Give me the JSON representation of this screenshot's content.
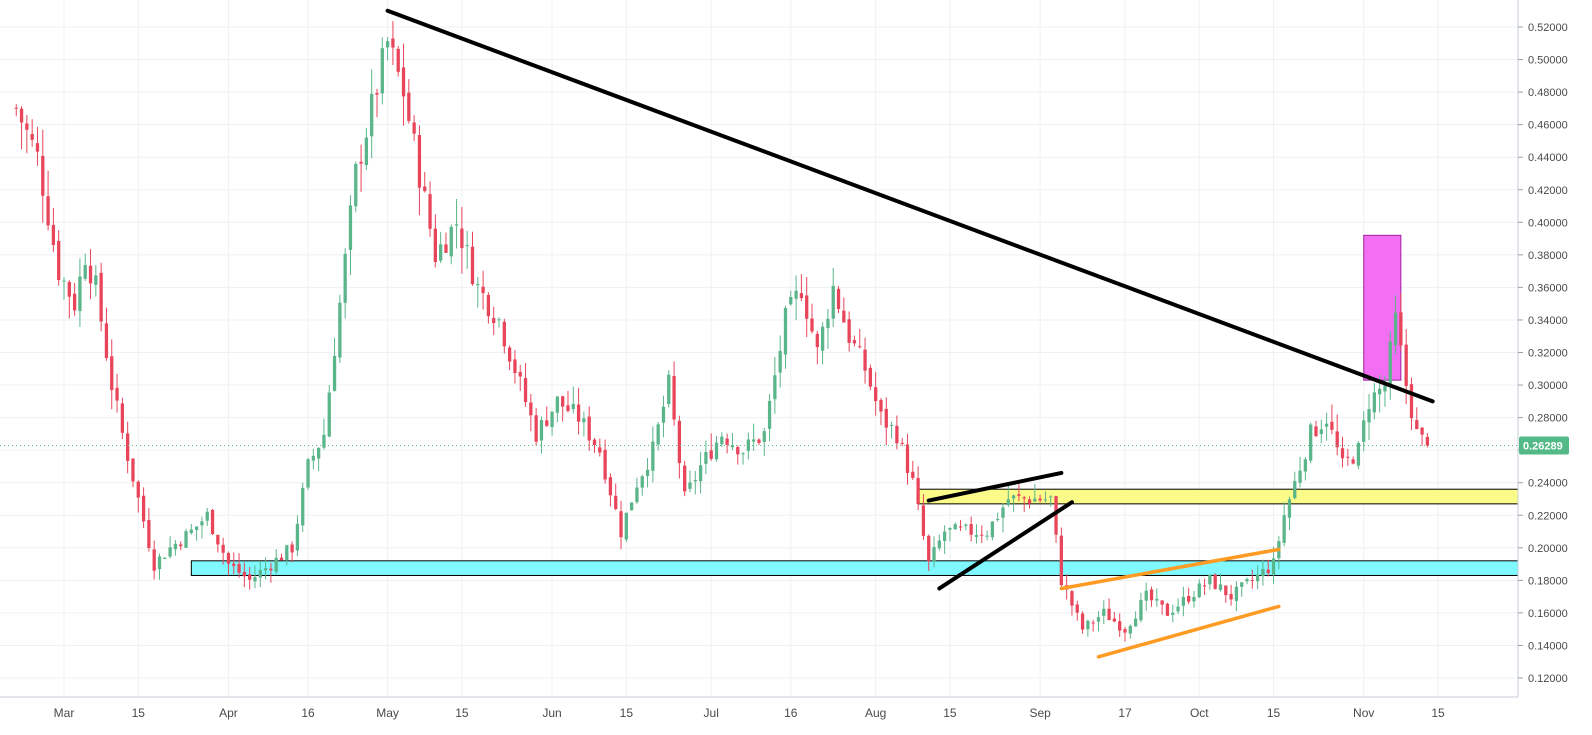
{
  "colors": {
    "background": "#ffffff",
    "grid": "#eef1f5",
    "up": "#5bb58a",
    "down": "#e8455b",
    "support_zone": "#7ff8ff",
    "resistance_zone": "#fbfb8a",
    "highlight_box": "#f26ef2",
    "trend_line": "#000000",
    "channel_line": "#ff9a22",
    "last_price": "#53b987"
  },
  "price_axis": {
    "ticks": [
      "0.52000",
      "0.50000",
      "0.48000",
      "0.46000",
      "0.44000",
      "0.42000",
      "0.40000",
      "0.38000",
      "0.36000",
      "0.34000",
      "0.32000",
      "0.30000",
      "0.28000",
      "0.26000",
      "0.24000",
      "0.22000",
      "0.20000",
      "0.18000",
      "0.16000",
      "0.14000",
      "0.12000"
    ],
    "last_price_label": "0.26289"
  },
  "time_axis": {
    "labels": [
      "Mar",
      "15",
      "Apr",
      "16",
      "May",
      "15",
      "Jun",
      "15",
      "Jul",
      "16",
      "Aug",
      "15",
      "Sep",
      "17",
      "Oct",
      "15",
      "Nov",
      "15"
    ]
  },
  "chart_data": {
    "type": "candlestick",
    "ylim": [
      0.11,
      0.53
    ],
    "y_ticks": [
      0.52,
      0.5,
      0.48,
      0.46,
      0.44,
      0.42,
      0.4,
      0.38,
      0.36,
      0.34,
      0.32,
      0.3,
      0.28,
      0.26,
      0.24,
      0.22,
      0.2,
      0.18,
      0.16,
      0.14,
      0.12
    ],
    "x_tick_dates": [
      "Mar 1",
      "Mar 15",
      "Apr 1",
      "Apr 16",
      "May 1",
      "May 15",
      "Jun 1",
      "Jun 15",
      "Jul 1",
      "Jul 16",
      "Aug 1",
      "Aug 15",
      "Sep 1",
      "Sep 17",
      "Oct 1",
      "Oct 15",
      "Nov 1",
      "Nov 15"
    ],
    "last_price": 0.26289,
    "close_path": [
      [
        "Feb 20",
        0.47
      ],
      [
        "Feb 24",
        0.44
      ],
      [
        "Feb 28",
        0.37
      ],
      [
        "Mar 3",
        0.35
      ],
      [
        "Mar 5",
        0.38
      ],
      [
        "Mar 7",
        0.36
      ],
      [
        "Mar 10",
        0.3
      ],
      [
        "Mar 12",
        0.27
      ],
      [
        "Mar 15",
        0.23
      ],
      [
        "Mar 18",
        0.19
      ],
      [
        "Mar 21",
        0.2
      ],
      [
        "Mar 25",
        0.21
      ],
      [
        "Mar 28",
        0.22
      ],
      [
        "Apr 1",
        0.19
      ],
      [
        "Apr 5",
        0.18
      ],
      [
        "Apr 9",
        0.19
      ],
      [
        "Apr 13",
        0.2
      ],
      [
        "Apr 16",
        0.25
      ],
      [
        "Apr 19",
        0.27
      ],
      [
        "Apr 22",
        0.35
      ],
      [
        "Apr 25",
        0.43
      ],
      [
        "Apr 28",
        0.47
      ],
      [
        "May 1",
        0.51
      ],
      [
        "May 4",
        0.48
      ],
      [
        "May 7",
        0.43
      ],
      [
        "May 10",
        0.38
      ],
      [
        "May 14",
        0.4
      ],
      [
        "May 18",
        0.36
      ],
      [
        "May 22",
        0.34
      ],
      [
        "May 25",
        0.31
      ],
      [
        "May 29",
        0.27
      ],
      [
        "Jun 2",
        0.29
      ],
      [
        "Jun 6",
        0.28
      ],
      [
        "Jun 10",
        0.26
      ],
      [
        "Jun 14",
        0.21
      ],
      [
        "Jun 17",
        0.24
      ],
      [
        "Jun 20",
        0.26
      ],
      [
        "Jun 23",
        0.3
      ],
      [
        "Jun 26",
        0.23
      ],
      [
        "Jun 29",
        0.25
      ],
      [
        "Jul 3",
        0.27
      ],
      [
        "Jul 7",
        0.26
      ],
      [
        "Jul 11",
        0.27
      ],
      [
        "Jul 15",
        0.34
      ],
      [
        "Jul 18",
        0.36
      ],
      [
        "Jul 21",
        0.32
      ],
      [
        "Jul 24",
        0.36
      ],
      [
        "Jul 27",
        0.33
      ],
      [
        "Jul 30",
        0.31
      ],
      [
        "Aug 2",
        0.28
      ],
      [
        "Aug 5",
        0.27
      ],
      [
        "Aug 8",
        0.24
      ],
      [
        "Aug 11",
        0.19
      ],
      [
        "Aug 14",
        0.21
      ],
      [
        "Aug 18",
        0.21
      ],
      [
        "Aug 22",
        0.21
      ],
      [
        "Aug 26",
        0.23
      ],
      [
        "Aug 30",
        0.23
      ],
      [
        "Sep 3",
        0.23
      ],
      [
        "Sep 5",
        0.18
      ],
      [
        "Sep 9",
        0.15
      ],
      [
        "Sep 13",
        0.16
      ],
      [
        "Sep 17",
        0.15
      ],
      [
        "Sep 21",
        0.17
      ],
      [
        "Sep 25",
        0.16
      ],
      [
        "Sep 29",
        0.17
      ],
      [
        "Oct 3",
        0.18
      ],
      [
        "Oct 7",
        0.17
      ],
      [
        "Oct 11",
        0.18
      ],
      [
        "Oct 15",
        0.19
      ],
      [
        "Oct 17",
        0.22
      ],
      [
        "Oct 19",
        0.24
      ],
      [
        "Oct 22",
        0.27
      ],
      [
        "Oct 25",
        0.28
      ],
      [
        "Oct 28",
        0.25
      ],
      [
        "Oct 31",
        0.26
      ],
      [
        "Nov 2",
        0.29
      ],
      [
        "Nov 5",
        0.3
      ],
      [
        "Nov 7",
        0.34
      ],
      [
        "Nov 9",
        0.3
      ],
      [
        "Nov 11",
        0.27
      ],
      [
        "Nov 13",
        0.262
      ]
    ],
    "zones": [
      {
        "from": "Mar 25",
        "to": "end",
        "low": 0.183,
        "high": 0.192,
        "color": "#7ff8ff"
      },
      {
        "from": "Aug 9",
        "to": "end",
        "low": 0.227,
        "high": 0.236,
        "color": "#fbfb8a"
      },
      {
        "from": "Nov 1",
        "to": "Nov 8",
        "low": 0.303,
        "high": 0.392,
        "color": "#f26ef2"
      }
    ],
    "lines": [
      {
        "kind": "trend",
        "from": [
          "May 1",
          0.53
        ],
        "to": [
          "Nov 14",
          0.29
        ],
        "color": "#000000"
      },
      {
        "kind": "wedge-upper",
        "from": [
          "Aug 11",
          0.229
        ],
        "to": [
          "Sep 5",
          0.246
        ],
        "color": "#000000"
      },
      {
        "kind": "wedge-lower",
        "from": [
          "Aug 13",
          0.175
        ],
        "to": [
          "Sep 7",
          0.228
        ],
        "color": "#000000"
      },
      {
        "kind": "channel-upper",
        "from": [
          "Sep 5",
          0.175
        ],
        "to": [
          "Oct 16",
          0.199
        ],
        "color": "#ff9a22"
      },
      {
        "kind": "channel-lower",
        "from": [
          "Sep 12",
          0.133
        ],
        "to": [
          "Oct 16",
          0.164
        ],
        "color": "#ff9a22"
      }
    ]
  }
}
